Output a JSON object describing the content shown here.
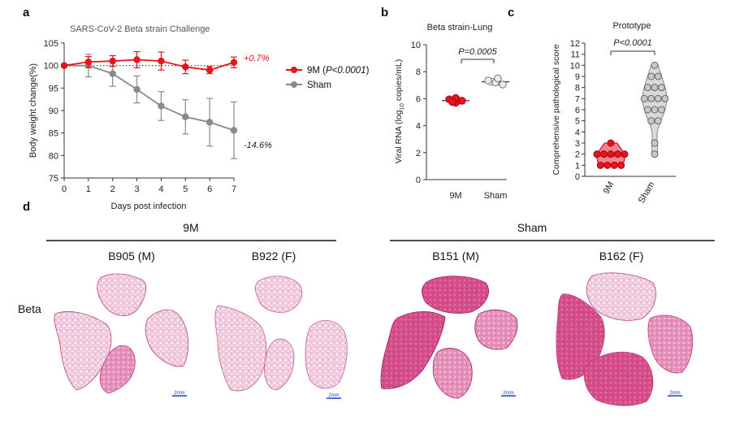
{
  "panels": {
    "a": "a",
    "b": "b",
    "c": "c",
    "d": "d"
  },
  "colors": {
    "treated": "#e8141c",
    "sham": "#8a8a8a",
    "axis": "#333333",
    "tissue_light": "#e9a8c8",
    "tissue_dark": "#c8326e",
    "scalebar": "#1f3fd0"
  },
  "chart_data": [
    {
      "id": "a",
      "type": "line",
      "title": "SARS-CoV-2 Beta strain Challenge",
      "xlabel": "Days post infection",
      "ylabel": "Body weight change(%)",
      "x": [
        0,
        1,
        2,
        3,
        4,
        5,
        6,
        7
      ],
      "xlim": [
        0,
        7
      ],
      "ylim": [
        75,
        105
      ],
      "yticks": [
        75,
        80,
        85,
        90,
        95,
        100,
        105
      ],
      "reference_line": 100,
      "series": [
        {
          "name": "9M",
          "legend_stat": "P<0.0001",
          "values": [
            100,
            100.8,
            101,
            101.3,
            101,
            99.7,
            99,
            100.7
          ],
          "errors": [
            0.3,
            1.2,
            1.2,
            1.8,
            2.0,
            1.5,
            0.8,
            1.2
          ],
          "end_label": "+0.7%"
        },
        {
          "name": "Sham",
          "values": [
            100,
            100,
            98.2,
            94.7,
            91,
            88.6,
            87.4,
            85.6
          ],
          "errors": [
            0.3,
            2.5,
            2.8,
            3.0,
            3.2,
            3.8,
            5.3,
            6.3
          ],
          "end_label": "-14.6%"
        }
      ]
    },
    {
      "id": "b",
      "type": "scatter",
      "title": "Beta strain-Lung",
      "ylabel_prefix": "Viral RNA",
      "ylabel_paren_open": " (log",
      "ylabel_sub": "10",
      "ylabel_rest": " copies/mL)",
      "categories": [
        "9M",
        "Sham"
      ],
      "ylim": [
        0,
        10
      ],
      "yticks": [
        0,
        2,
        4,
        6,
        8,
        10
      ],
      "significance": "P=0.0005",
      "groups": [
        {
          "name": "9M",
          "points": [
            5.95,
            5.7,
            5.85,
            6.05,
            5.75
          ],
          "mean": 5.85
        },
        {
          "name": "Sham",
          "points": [
            7.35,
            7.2,
            7.05,
            7.5
          ],
          "mean": 7.25
        }
      ]
    },
    {
      "id": "c",
      "type": "violin",
      "title": "Prototype",
      "ylabel": "Comprehensive pathological score",
      "categories": [
        "9M",
        "Sham"
      ],
      "ylim": [
        0,
        12
      ],
      "yticks": [
        0,
        1,
        2,
        3,
        4,
        5,
        6,
        7,
        8,
        9,
        10,
        11,
        12
      ],
      "significance": "P<0.0001",
      "groups": [
        {
          "name": "9M",
          "points": [
            3,
            2,
            2,
            2,
            2,
            2,
            1,
            1,
            1,
            1
          ]
        },
        {
          "name": "Sham",
          "points": [
            10,
            9,
            9,
            8,
            8,
            8,
            7,
            7,
            7,
            7,
            6,
            6,
            6,
            5,
            5,
            3,
            2
          ]
        }
      ]
    }
  ],
  "histology": {
    "groups": [
      {
        "label": "9M",
        "samples": [
          "B905 (M)",
          "B922 (F)"
        ]
      },
      {
        "label": "Sham",
        "samples": [
          "B151 (M)",
          "B162 (F)"
        ]
      }
    ],
    "row_label": "Beta",
    "scalebar_label": "2mm"
  }
}
